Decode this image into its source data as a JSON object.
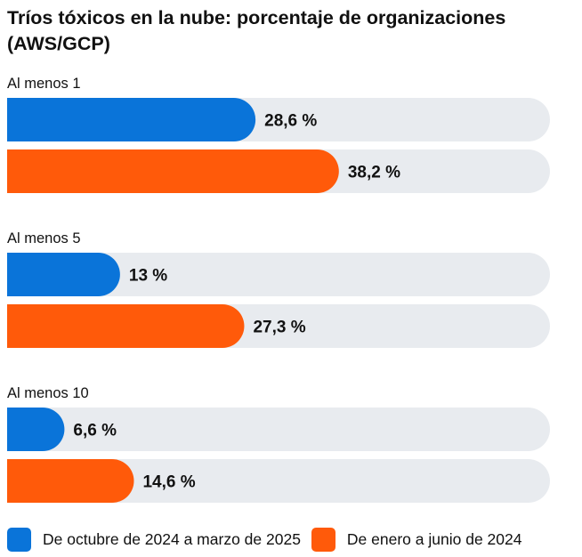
{
  "chart_data": {
    "type": "bar",
    "orientation": "horizontal",
    "title": "Tríos tóxicos en la nube: porcentaje de organizaciones (AWS/GCP)",
    "categories": [
      "Al menos 1",
      "Al menos 5",
      "Al menos 10"
    ],
    "series": [
      {
        "name": "De octubre de 2024 a marzo de 2025",
        "color": "#0a74d9",
        "values": [
          28.6,
          13,
          6.6
        ],
        "labels": [
          "28,6 %",
          "13 %",
          "6,6 %"
        ]
      },
      {
        "name": "De enero a junio de 2024",
        "color": "#ff5a0a",
        "values": [
          38.2,
          27.3,
          14.6
        ],
        "labels": [
          "38,2 %",
          "27,3 %",
          "14,6 %"
        ]
      }
    ],
    "xlim": [
      0,
      100
    ],
    "track_color": "#e8ebef",
    "grid": false,
    "legend_position": "bottom-left"
  }
}
